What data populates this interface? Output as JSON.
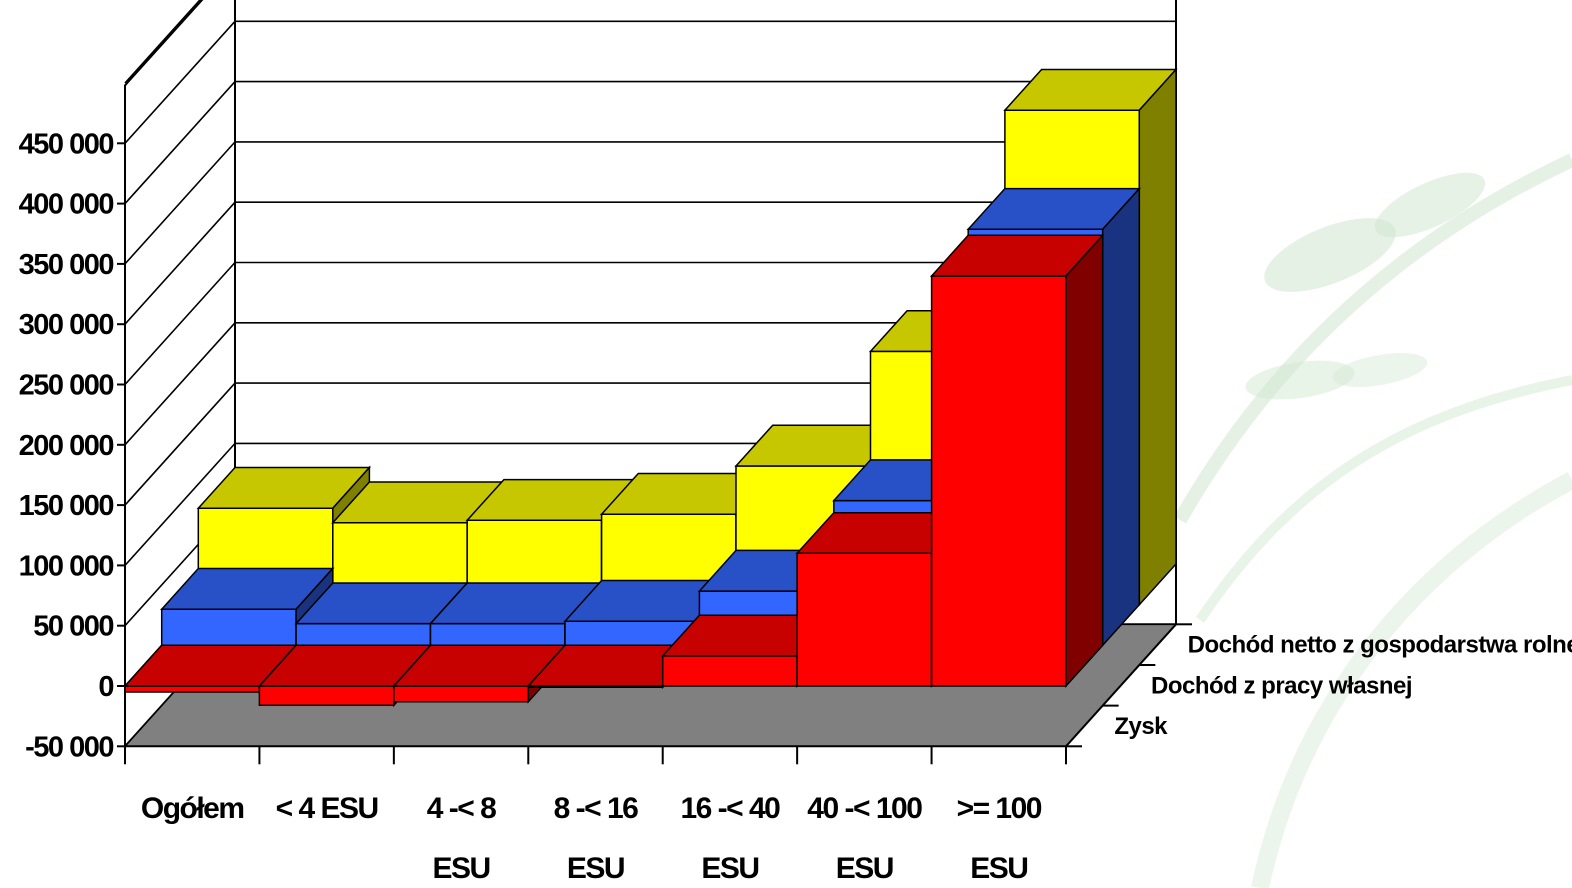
{
  "chart_data": {
    "type": "bar",
    "variant": "3d-depth",
    "categories": [
      "Ogółem",
      "< 4 ESU",
      "4 -< 8 ESU",
      "8 -< 16 ESU",
      "16 -< 40 ESU",
      "40 -< 100 ESU",
      ">= 100 ESU"
    ],
    "category_lines": [
      [
        "Ogółem"
      ],
      [
        "< 4 ESU"
      ],
      [
        "4 -< 8",
        "ESU"
      ],
      [
        "8 -< 16",
        "ESU"
      ],
      [
        "16 -< 40",
        "ESU"
      ],
      [
        "40 -< 100",
        "ESU"
      ],
      [
        ">= 100",
        "ESU"
      ]
    ],
    "series": [
      {
        "name": "Zysk",
        "color": "#ff0000",
        "values": [
          -5000,
          -16000,
          -13000,
          -1000,
          25000,
          110000,
          340000
        ]
      },
      {
        "name": "Dochód z pracy własnej",
        "color": "#3366ff",
        "values": [
          30000,
          18000,
          18000,
          20000,
          45000,
          120000,
          345000
        ]
      },
      {
        "name": "Dochód netto z gospodarstwa rolnego",
        "color": "#ffff00",
        "values": [
          80000,
          68000,
          70000,
          75000,
          115000,
          210000,
          410000
        ]
      }
    ],
    "yticks": [
      -50000,
      0,
      50000,
      100000,
      150000,
      200000,
      250000,
      300000,
      350000,
      400000,
      450000
    ],
    "ytick_labels": [
      "-50 000",
      "0",
      "50 000",
      "100 000",
      "150 000",
      "200 000",
      "250 000",
      "300 000",
      "350 000",
      "400 000",
      "450 000"
    ],
    "ylim": [
      -50000,
      500000
    ],
    "grid": true,
    "colors": {
      "floor": "#808080",
      "wall": "#ffffff",
      "gridline": "#000000",
      "background_motif": "#cfe6cf"
    }
  }
}
